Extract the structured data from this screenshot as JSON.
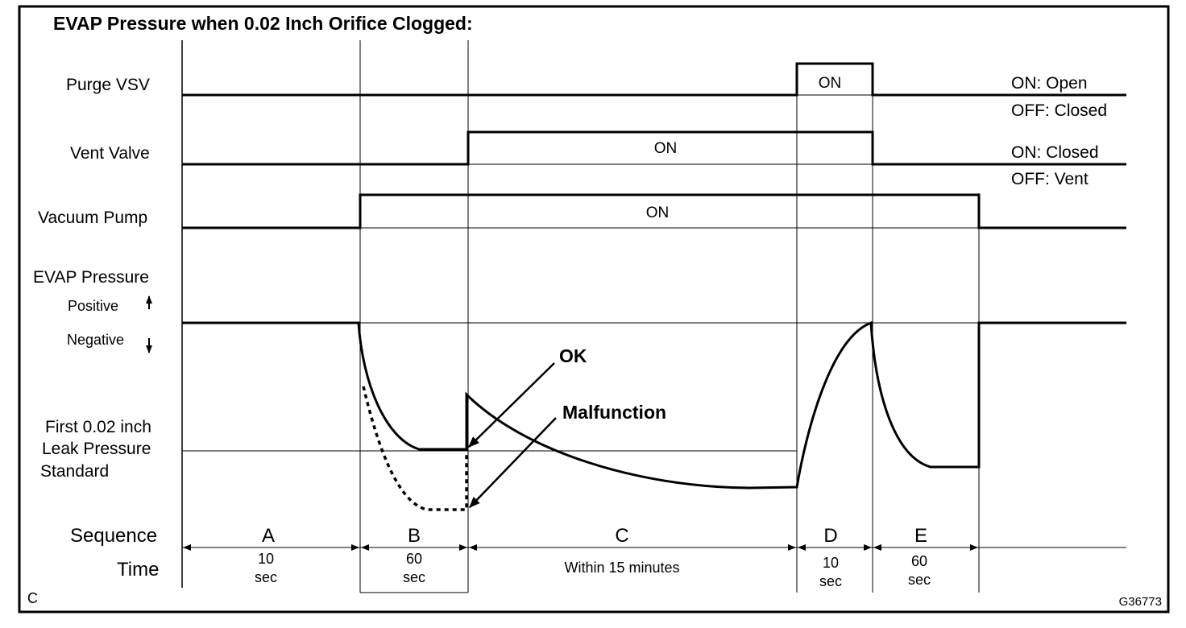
{
  "title": "EVAP Pressure when 0.02 Inch Orifice Clogged:",
  "rows": {
    "purge_vsv": {
      "label": "Purge VSV",
      "on_label": "ON",
      "legend_on": "ON: Open",
      "legend_off": "OFF: Closed"
    },
    "vent_valve": {
      "label": "Vent Valve",
      "on_label": "ON",
      "legend_on": "ON: Closed",
      "legend_off": "OFF: Vent"
    },
    "vacuum_pump": {
      "label": "Vacuum Pump",
      "on_label": "ON"
    },
    "evap_pressure": {
      "label": "EVAP Pressure",
      "positive": "Positive",
      "negative": "Negative",
      "standard_line1": "First 0.02 inch",
      "standard_line2": "Leak Pressure",
      "standard_line3": "Standard"
    }
  },
  "annotations": {
    "ok": "OK",
    "malfunction": "Malfunction"
  },
  "sequence": {
    "label": "Sequence",
    "time_label": "Time",
    "steps": [
      {
        "name": "A",
        "time1": "10",
        "time2": "sec"
      },
      {
        "name": "B",
        "time1": "60",
        "time2": "sec"
      },
      {
        "name": "C",
        "time1": "Within 15 minutes",
        "time2": ""
      },
      {
        "name": "D",
        "time1": "10",
        "time2": "sec"
      },
      {
        "name": "E",
        "time1": "60",
        "time2": "sec"
      }
    ]
  },
  "corner_left": "C",
  "corner_right": "G36773"
}
